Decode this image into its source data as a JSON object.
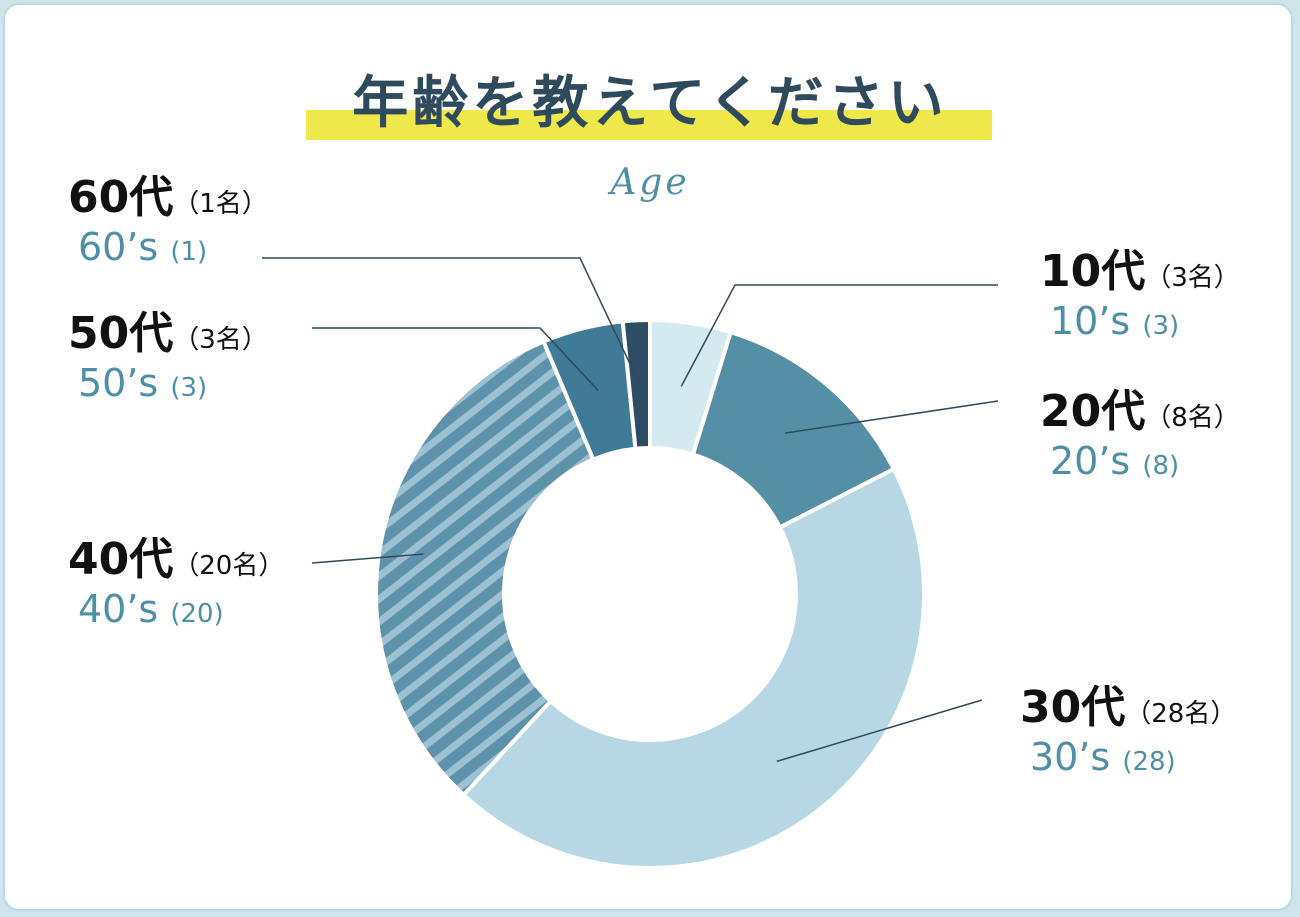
{
  "title": "年齢を教えてください",
  "subtitle": "Age",
  "colors": {
    "background": "#cfe4ea",
    "card": "#ffffff",
    "title_highlight": "#efe84a",
    "title": "#2e4a5c",
    "subtitle": "#4d8fa6",
    "leader_line": "#2e4a5c"
  },
  "chart_data": {
    "type": "pie",
    "style": "donut",
    "total": 63,
    "slices": [
      {
        "key": "10s",
        "jp_label": "10代",
        "jp_count": "（3名）",
        "en_label": "10’s",
        "en_count": "(3)",
        "value": 3,
        "color": "#d5e9f0",
        "pattern": "solid"
      },
      {
        "key": "20s",
        "jp_label": "20代",
        "jp_count": "（8名）",
        "en_label": "20’s",
        "en_count": "(8)",
        "value": 8,
        "color": "#548fa6",
        "pattern": "solid"
      },
      {
        "key": "30s",
        "jp_label": "30代",
        "jp_count": "（28名）",
        "en_label": "30’s",
        "en_count": "(28)",
        "value": 28,
        "color": "#b7d7e4",
        "pattern": "solid"
      },
      {
        "key": "40s",
        "jp_label": "40代",
        "jp_count": "（20名）",
        "en_label": "40’s",
        "en_count": "(20)",
        "value": 20,
        "color": "#5e92aa",
        "pattern": "striped"
      },
      {
        "key": "50s",
        "jp_label": "50代",
        "jp_count": "（3名）",
        "en_label": "50’s",
        "en_count": "(3)",
        "value": 3,
        "color": "#3f7b96",
        "pattern": "solid"
      },
      {
        "key": "60s",
        "jp_label": "60代",
        "jp_count": "（1名）",
        "en_label": "60’s",
        "en_count": "(1)",
        "value": 1,
        "color": "#2c4d63",
        "pattern": "solid"
      }
    ]
  }
}
